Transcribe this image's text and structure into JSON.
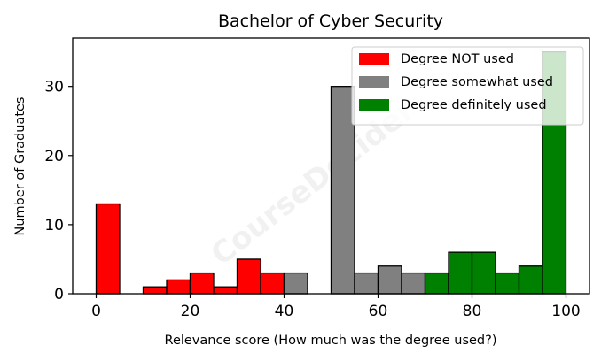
{
  "chart_data": {
    "type": "bar",
    "title": "Bachelor of Cyber Security",
    "xlabel": "Relevance score (How much was the degree used?)",
    "ylabel": "Number of Graduates",
    "xlim": [
      -5,
      105
    ],
    "ylim": [
      0,
      37
    ],
    "xticks": [
      0,
      20,
      40,
      60,
      80,
      100
    ],
    "yticks": [
      0,
      10,
      20,
      30
    ],
    "bin_width": 5,
    "legend_position": "top-right",
    "watermark": "CourseDecider",
    "series": [
      {
        "name": "Degree NOT used",
        "color": "#ff0000",
        "bins": [
          {
            "x": 0,
            "value": 13
          },
          {
            "x": 10,
            "value": 1
          },
          {
            "x": 15,
            "value": 2
          },
          {
            "x": 20,
            "value": 3
          },
          {
            "x": 25,
            "value": 1
          },
          {
            "x": 30,
            "value": 5
          },
          {
            "x": 35,
            "value": 3
          }
        ]
      },
      {
        "name": "Degree somewhat used",
        "color": "#808080",
        "bins": [
          {
            "x": 40,
            "value": 3
          },
          {
            "x": 50,
            "value": 30
          },
          {
            "x": 55,
            "value": 3
          },
          {
            "x": 60,
            "value": 4
          },
          {
            "x": 65,
            "value": 3
          }
        ]
      },
      {
        "name": "Degree definitely used",
        "color": "#008000",
        "bins": [
          {
            "x": 70,
            "value": 3
          },
          {
            "x": 75,
            "value": 6
          },
          {
            "x": 80,
            "value": 6
          },
          {
            "x": 85,
            "value": 3
          },
          {
            "x": 90,
            "value": 4
          },
          {
            "x": 95,
            "value": 35
          }
        ]
      }
    ]
  }
}
